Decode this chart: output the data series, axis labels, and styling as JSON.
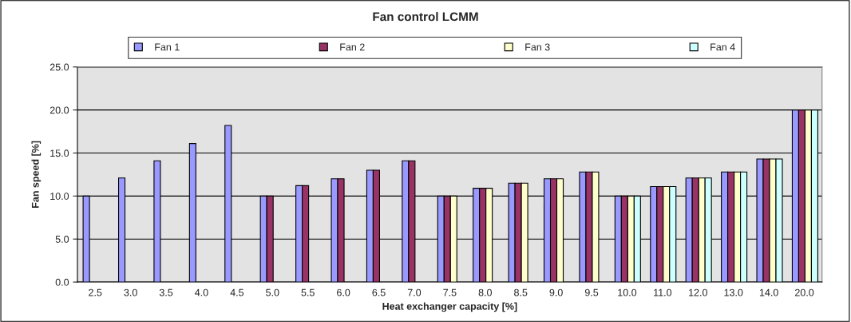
{
  "chart_data": {
    "type": "bar",
    "title": "Fan control LCMM",
    "xlabel": "Heat exchanger capacity [%]",
    "ylabel": "Fan speed [%]",
    "categories": [
      "2.5",
      "3.0",
      "3.5",
      "4.0",
      "4.5",
      "5.0",
      "5.5",
      "6.0",
      "6.5",
      "7.0",
      "7.5",
      "8.0",
      "8.5",
      "9.0",
      "9.5",
      "10.0",
      "11.0",
      "12.0",
      "13.0",
      "14.0",
      "20.0"
    ],
    "series": [
      {
        "name": "Fan 1",
        "color": "#9999ff",
        "values": [
          10.0,
          12.1,
          14.1,
          16.1,
          18.2,
          10.0,
          11.2,
          12.0,
          13.0,
          14.1,
          10.0,
          10.9,
          11.5,
          12.0,
          12.8,
          10.0,
          11.1,
          12.1,
          12.8,
          14.3,
          20.0
        ]
      },
      {
        "name": "Fan 2",
        "color": "#993366",
        "values": [
          null,
          null,
          null,
          null,
          null,
          10.0,
          11.2,
          12.0,
          13.0,
          14.1,
          10.0,
          10.9,
          11.5,
          12.0,
          12.8,
          10.0,
          11.1,
          12.1,
          12.8,
          14.3,
          20.0
        ]
      },
      {
        "name": "Fan 3",
        "color": "#ffffcc",
        "values": [
          null,
          null,
          null,
          null,
          null,
          null,
          null,
          null,
          null,
          null,
          10.0,
          10.9,
          11.5,
          12.0,
          12.8,
          10.0,
          11.1,
          12.1,
          12.8,
          14.3,
          20.0
        ]
      },
      {
        "name": "Fan 4",
        "color": "#ccffff",
        "values": [
          null,
          null,
          null,
          null,
          null,
          null,
          null,
          null,
          null,
          null,
          null,
          null,
          null,
          null,
          null,
          10.0,
          11.1,
          12.1,
          12.8,
          14.3,
          20.0
        ]
      }
    ],
    "ylim": [
      0,
      25
    ],
    "yticks": [
      {
        "value": 0,
        "label": "0.0"
      },
      {
        "value": 5,
        "label": "5.0"
      },
      {
        "value": 10,
        "label": "10.0"
      },
      {
        "value": 15,
        "label": "15.0"
      },
      {
        "value": 20,
        "label": "20.0"
      },
      {
        "value": 25,
        "label": "25.0"
      }
    ],
    "grid": "y",
    "legend": "top"
  }
}
